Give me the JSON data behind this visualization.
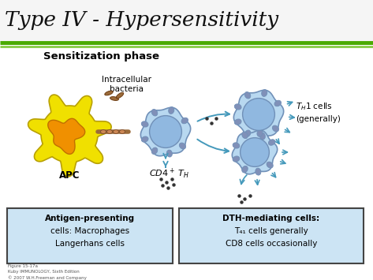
{
  "title": "Type IV - Hypersensitivity",
  "subtitle": "Sensitization phase",
  "bg_color": "#ffffff",
  "title_color": "#111111",
  "green_line1": "#4aaa00",
  "green_line2": "#88cc44",
  "apc_label": "APC",
  "bacteria_label": "Intracellular\nbacteria",
  "cd4_label": "CD4⁺ Tᴴ",
  "th1_label": "T₄₁ cells\n(generally)",
  "box1_lines": [
    "Antigen-presenting",
    "cells: Macrophages",
    "Langerhans cells"
  ],
  "box2_line0": "DTH-mediating cells:",
  "box2_line1": "T₄₁ cells generally",
  "box2_line2": "CD8 cells occasionally",
  "footnote": "Figure 15-17a\nKuby IMMUNOLOGY, Sixth Edition\n© 2007 W.H.Freeman and Company",
  "apc_cell_color": "#f0e000",
  "apc_nucleus_color": "#f09000",
  "lymph_light": "#b8d8f0",
  "lymph_mid": "#90b8e0",
  "lymph_dark": "#7090b8",
  "bump_color": "#8090b8",
  "box_fill": "#cce4f4",
  "box_edge": "#444444",
  "arrow_color": "#4499bb",
  "dot_color": "#333333"
}
